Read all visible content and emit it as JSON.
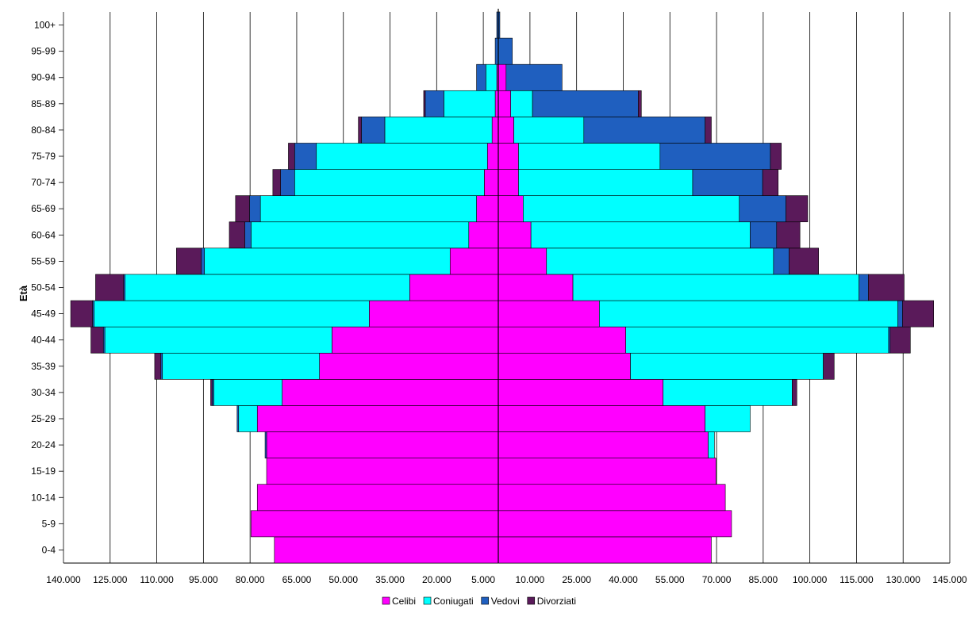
{
  "chart_data": {
    "type": "bar",
    "orientation": "horizontal-population-pyramid",
    "title": "",
    "ylabel": "Età",
    "xlabel": "",
    "categories": [
      "0-4",
      "5-9",
      "10-14",
      "15-19",
      "20-24",
      "25-29",
      "30-34",
      "35-39",
      "40-44",
      "45-49",
      "50-54",
      "55-59",
      "60-64",
      "65-69",
      "70-74",
      "75-79",
      "80-84",
      "85-89",
      "90-94",
      "95-99",
      "100+"
    ],
    "x_tick_labels": [
      "140.000",
      "125.000",
      "110.000",
      "95.000",
      "80.000",
      "65.000",
      "50.000",
      "35.000",
      "20.000",
      "5.000",
      "10.000",
      "25.000",
      "40.000",
      "55.000",
      "70.000",
      "85.000",
      "100.000",
      "115.000",
      "130.000",
      "145.000"
    ],
    "xlim": [
      -140000,
      145000
    ],
    "grid": "vertical",
    "legend_position": "bottom",
    "series": [
      {
        "name": "Celibi",
        "left": [
          72000,
          79500,
          77500,
          74500,
          74500,
          77500,
          69500,
          57500,
          53500,
          41500,
          28500,
          15500,
          9500,
          7000,
          4500,
          3500,
          2000,
          1000,
          500,
          0,
          0
        ],
        "right": [
          68500,
          75000,
          73000,
          70000,
          67500,
          66500,
          53000,
          42500,
          41000,
          32500,
          24000,
          15500,
          10500,
          8000,
          6500,
          6500,
          5000,
          4000,
          2500,
          0,
          0
        ]
      },
      {
        "name": "Coniugati",
        "left": [
          0,
          0,
          0,
          0,
          0,
          6000,
          22000,
          50500,
          73000,
          88500,
          91500,
          79000,
          70000,
          69500,
          61000,
          55000,
          34500,
          16500,
          3500,
          0,
          0
        ],
        "right": [
          0,
          0,
          0,
          0,
          2000,
          14500,
          41500,
          62000,
          84500,
          96000,
          92000,
          73000,
          70500,
          69500,
          56000,
          45500,
          22500,
          7000,
          0,
          0,
          0
        ]
      },
      {
        "name": "Vedovi",
        "left": [
          0,
          0,
          0,
          0,
          500,
          500,
          500,
          500,
          500,
          500,
          500,
          1000,
          2000,
          3500,
          4500,
          7000,
          7500,
          6000,
          3000,
          1000,
          500
        ],
        "right": [
          0,
          0,
          0,
          0,
          0,
          0,
          0,
          0,
          500,
          1500,
          3000,
          5000,
          8500,
          15000,
          22500,
          35500,
          39000,
          34000,
          18000,
          4500,
          500
        ]
      },
      {
        "name": "Divorziati",
        "left": [
          0,
          0,
          0,
          0,
          0,
          0,
          500,
          2000,
          4000,
          7000,
          9000,
          8000,
          5000,
          4500,
          2500,
          2000,
          1000,
          500,
          0,
          0,
          0
        ],
        "right": [
          0,
          0,
          0,
          0,
          0,
          0,
          1500,
          3500,
          6500,
          10000,
          11500,
          9500,
          7500,
          7000,
          5000,
          3500,
          2000,
          1000,
          0,
          0,
          0
        ]
      }
    ],
    "colors": {
      "Celibi": "#ff00ff",
      "Coniugati": "#00ffff",
      "Vedovi": "#1f5fbf",
      "Divorziati": "#5a1a5a"
    }
  }
}
